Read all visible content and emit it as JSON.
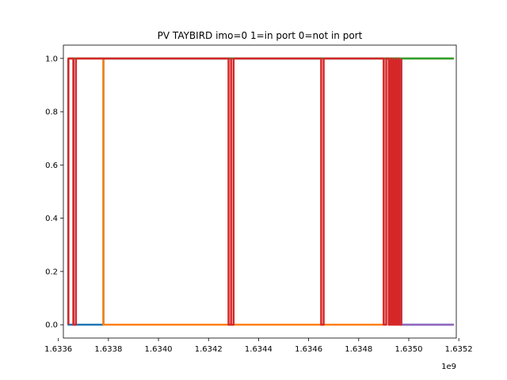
{
  "chart_data": {
    "type": "line",
    "title": "PV TAYBIRD imo=0 1=in port 0=not in port",
    "xlabel": "",
    "ylabel": "",
    "x_offset_label": "1e9",
    "xlim": [
      1.63362,
      1.63519
    ],
    "ylim": [
      -0.05,
      1.05
    ],
    "x_ticks": [
      1.6336,
      1.6338,
      1.634,
      1.6342,
      1.6344,
      1.6346,
      1.6348,
      1.635,
      1.6352
    ],
    "x_tick_labels": [
      "1.6336",
      "1.6338",
      "1.6340",
      "1.6342",
      "1.6344",
      "1.6346",
      "1.6348",
      "1.6350",
      "1.6352"
    ],
    "y_ticks": [
      0.0,
      0.2,
      0.4,
      0.6,
      0.8,
      1.0
    ],
    "y_tick_labels": [
      "0.0",
      "0.2",
      "0.4",
      "0.6",
      "0.8",
      "1.0"
    ],
    "grid": false,
    "legend": false,
    "series": [
      {
        "color": "#1f77b4",
        "points": [
          [
            1.63364,
            1
          ],
          [
            1.63364,
            0
          ],
          [
            1.63366,
            0
          ],
          [
            1.63366,
            1
          ],
          [
            1.63366,
            0
          ],
          [
            1.63378,
            0
          ],
          [
            1.63378,
            1
          ],
          [
            1.63497,
            1
          ],
          [
            1.63497,
            0
          ],
          [
            1.63518,
            0
          ]
        ]
      },
      {
        "color": "#ff7f0e",
        "points": [
          [
            1.63364,
            1
          ],
          [
            1.63378,
            1
          ],
          [
            1.63378,
            0
          ],
          [
            1.6349,
            0
          ],
          [
            1.6349,
            1
          ],
          [
            1.63518,
            1
          ]
        ]
      },
      {
        "color": "#2ca02c",
        "points": [
          [
            1.63364,
            1
          ],
          [
            1.63518,
            1
          ]
        ]
      },
      {
        "color": "#9467bd",
        "points": [
          [
            1.63497,
            1
          ],
          [
            1.63497,
            0
          ],
          [
            1.63518,
            0
          ]
        ]
      },
      {
        "color": "#d62728",
        "points": [
          [
            1.63364,
            0
          ],
          [
            1.63364,
            1
          ],
          [
            1.63366,
            1
          ],
          [
            1.63366,
            0
          ],
          [
            1.63367,
            0
          ],
          [
            1.63367,
            1
          ],
          [
            1.63428,
            1
          ],
          [
            1.63428,
            0
          ],
          [
            1.63429,
            0
          ],
          [
            1.63429,
            1
          ],
          [
            1.63429,
            0
          ],
          [
            1.6343,
            0
          ],
          [
            1.6343,
            1
          ],
          [
            1.63465,
            1
          ],
          [
            1.63465,
            0
          ],
          [
            1.63466,
            0
          ],
          [
            1.63466,
            1
          ],
          [
            1.63466,
            0
          ],
          [
            1.63466,
            0
          ],
          [
            1.63466,
            1
          ],
          [
            1.6349,
            1
          ],
          [
            1.6349,
            0
          ],
          [
            1.63491,
            0
          ],
          [
            1.63491,
            1
          ],
          [
            1.63492,
            1
          ],
          [
            1.63492,
            0
          ],
          [
            1.63493,
            0
          ],
          [
            1.63493,
            1
          ],
          [
            1.63493,
            0
          ],
          [
            1.63494,
            0
          ],
          [
            1.63494,
            1
          ],
          [
            1.63494,
            0
          ],
          [
            1.63495,
            0
          ],
          [
            1.63495,
            1
          ],
          [
            1.63495,
            0
          ],
          [
            1.63496,
            0
          ],
          [
            1.63496,
            1
          ],
          [
            1.63496,
            0
          ],
          [
            1.63497,
            0
          ],
          [
            1.63497,
            1
          ]
        ]
      }
    ],
    "dense_band": {
      "color": "#d62728",
      "x_range": [
        1.63492,
        1.63497
      ],
      "y_range": [
        0,
        1
      ]
    }
  }
}
